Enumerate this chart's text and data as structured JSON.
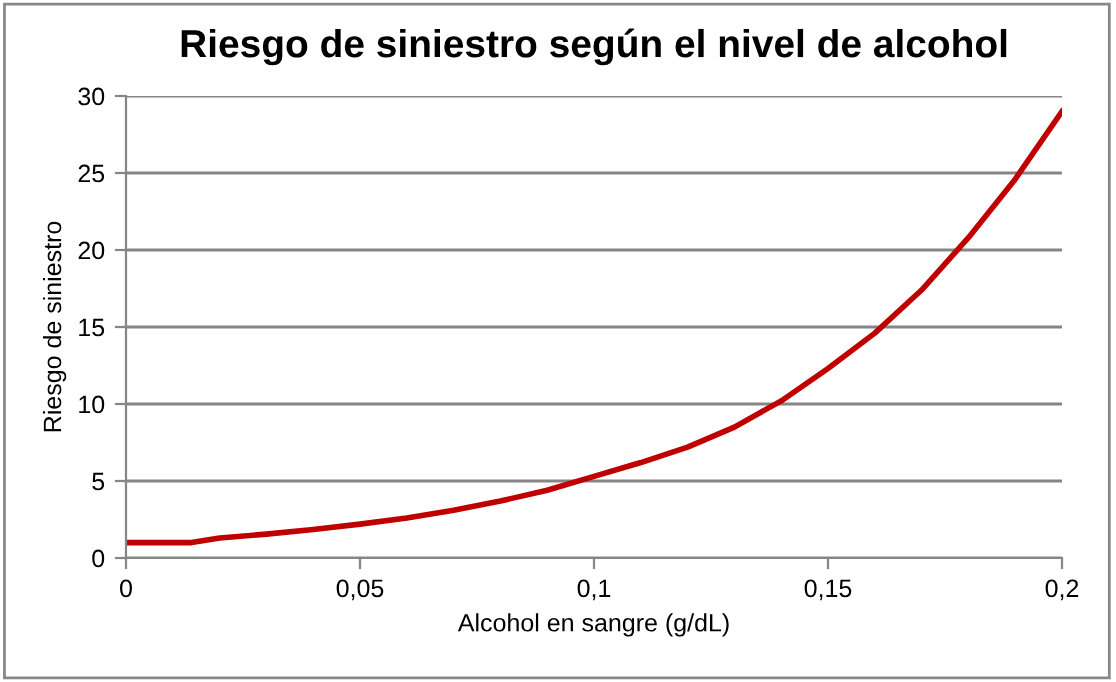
{
  "chart_data": {
    "type": "line",
    "title": "Riesgo de siniestro según el nivel de alcohol",
    "xlabel": "Alcohol en sangre (g/dL)",
    "ylabel": "Riesgo de siniestro",
    "x": [
      0,
      0.014,
      0.02,
      0.03,
      0.04,
      0.05,
      0.06,
      0.07,
      0.08,
      0.09,
      0.1,
      0.11,
      0.12,
      0.13,
      0.14,
      0.15,
      0.16,
      0.17,
      0.18,
      0.19,
      0.2
    ],
    "series": [
      {
        "color": "#c00000",
        "values": [
          1,
          1,
          1.3,
          1.55,
          1.85,
          2.2,
          2.6,
          3.1,
          3.7,
          4.4,
          5.3,
          6.2,
          7.2,
          8.5,
          10.2,
          12.3,
          14.6,
          17.4,
          20.8,
          24.6,
          29
        ]
      }
    ],
    "xlim": [
      0,
      0.2
    ],
    "ylim": [
      0,
      30
    ],
    "xticks": [
      0,
      {
        "value": 0.05,
        "label": "0,05"
      },
      {
        "value": 0.1,
        "label": "0,1"
      },
      {
        "value": 0.15,
        "label": "0,15"
      },
      {
        "value": 0.2,
        "label": "0,2"
      }
    ],
    "yticks": [
      0,
      5,
      10,
      15,
      20,
      25,
      30
    ],
    "grid": "y",
    "legend": false,
    "marker": "none",
    "line_style": "solid"
  }
}
